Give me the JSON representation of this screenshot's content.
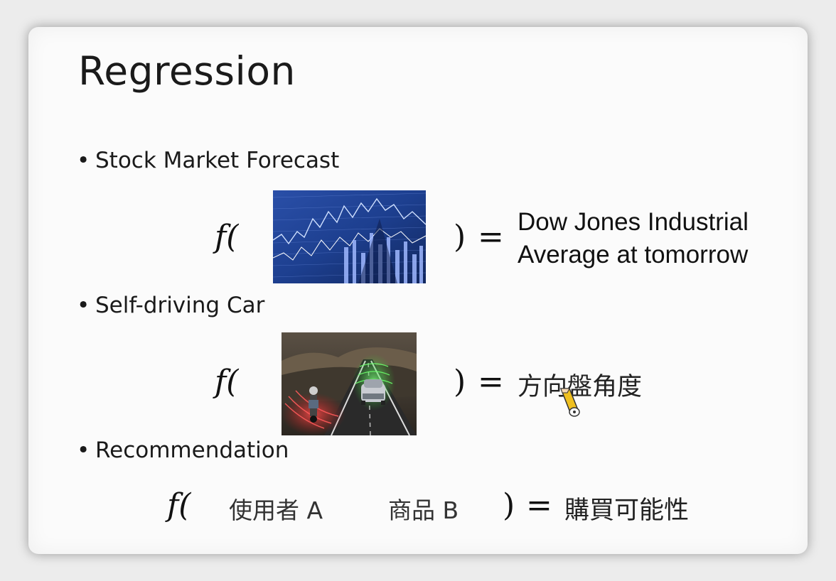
{
  "slide": {
    "title": "Regression",
    "bullets": [
      "Stock Market Forecast",
      "Self-driving Car",
      "Recommendation"
    ]
  },
  "stock": {
    "func": "f(",
    "close": ")",
    "equals": "=",
    "output_line1": "Dow Jones Industrial",
    "output_line2": "Average at tomorrow"
  },
  "car": {
    "func": "f(",
    "close": ")",
    "equals": "=",
    "output": "方向盤角度"
  },
  "recommendation": {
    "func": "f(",
    "input_user": "使用者 A",
    "input_item": "商品 B",
    "close": ")",
    "equals": "=",
    "output": "購買可能性"
  },
  "colors": {
    "slide_bg": "#fbfbfb",
    "text": "#1a1a1a",
    "stock_image_blue": "#1d3f8f",
    "car_road": "#2a2a2a",
    "radar_green": "#4bdc4b",
    "radar_red": "#e03030"
  }
}
